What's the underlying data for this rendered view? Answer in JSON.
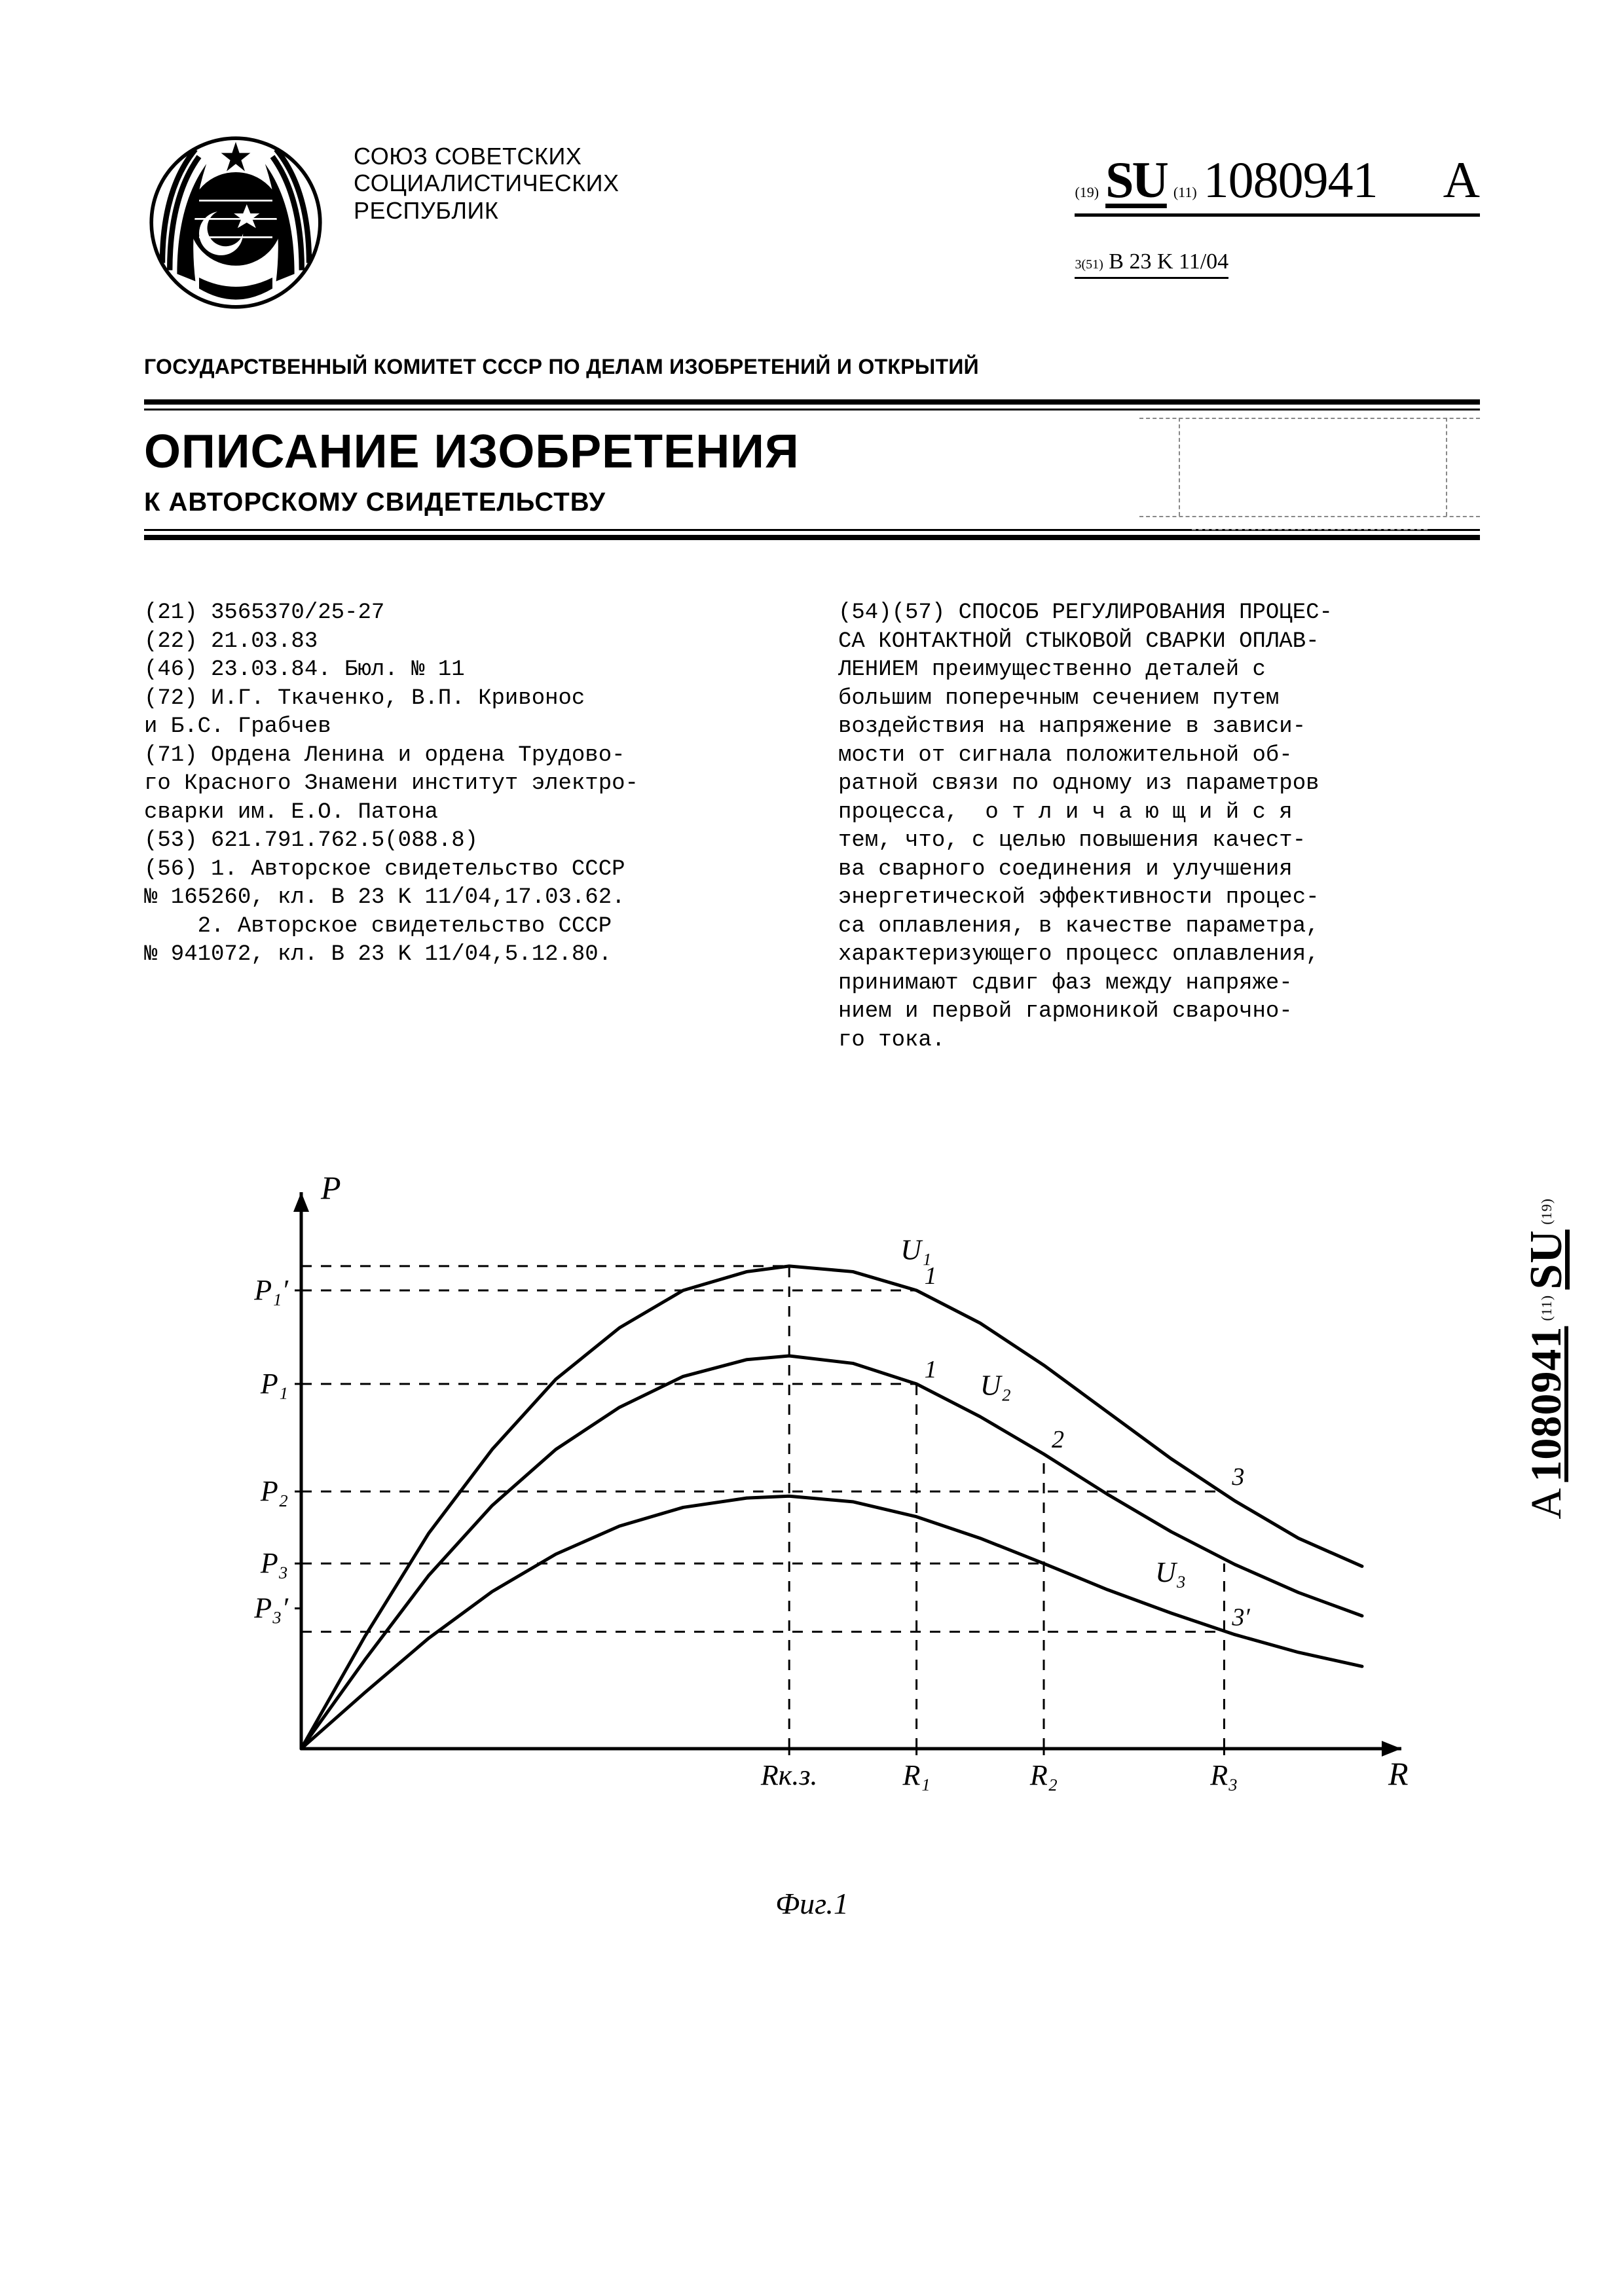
{
  "header": {
    "issuer": "СОЮЗ СОВЕТСКИХ\nСОЦИАЛИСТИЧЕСКИХ\nРЕСПУБЛИК",
    "pub_prefix_19": "(19)",
    "pub_cc": "SU",
    "pub_prefix_11": "(11)",
    "pub_number": "1080941",
    "pub_kind": "A",
    "class_prefix": "3(51)",
    "class_code": "B 23 K 11/04",
    "committee": "ГОСУДАРСТВЕННЫЙ КОМИТЕТ СССР\nПО ДЕЛАМ ИЗОБРЕТЕНИЙ И ОТКРЫТИЙ"
  },
  "banner": {
    "title": "ОПИСАНИЕ ИЗОБРЕТЕНИЯ",
    "subtitle": "К АВТОРСКОМУ СВИДЕТЕЛЬСТВУ"
  },
  "left_col": "(21) 3565370/25-27\n(22) 21.03.83\n(46) 23.03.84. Бюл. № 11\n(72) И.Г. Ткаченко, В.П. Кривонос\nи Б.С. Грабчев\n(71) Ордена Ленина и ордена Трудово-\nго Красного Знамени институт электро-\nсварки им. Е.О. Патона\n(53) 621.791.762.5(088.8)\n(56) 1. Авторское свидетельство СССР\n№ 165260, кл. B 23 K 11/04,17.03.62.\n    2. Авторское свидетельство СССР\n№ 941072, кл. B 23 K 11/04,5.12.80.",
  "right_col": "(54)(57) СПОСОБ РЕГУЛИРОВАНИЯ ПРОЦЕС-\nСА КОНТАКТНОЙ СТЫКОВОЙ СВАРКИ ОПЛАВ-\nЛЕНИЕМ преимущественно деталей с\nбольшим поперечным сечением путем\nвоздействия на напряжение в зависи-\nмости от сигнала положительной об-\nратной связи по одному из параметров\nпроцесса,  о т л и ч а ю щ и й с я\nтем, что, с целью повышения качест-\nва сварного соединения и улучшения\nэнергетической эффективности процес-\nса оплавления, в качестве параметра,\nхарактеризующего процесс оплавления,\nпринимают сдвиг фаз между напряже-\nнием и первой гармоникой сварочно-\nго тока.",
  "figure": {
    "type": "line",
    "caption": "Фиг.1",
    "x_axis_label": "R",
    "y_axis_label": "P",
    "background_color": "#ffffff",
    "axis_color": "#000000",
    "line_width": 5,
    "dash_pattern": "16 14",
    "xlim": [
      0,
      1000
    ],
    "ylim": [
      0,
      560
    ],
    "curves": [
      {
        "name": "U1",
        "label": "U₁",
        "color": "#000000",
        "points": [
          [
            0,
            0
          ],
          [
            60,
            120
          ],
          [
            120,
            230
          ],
          [
            180,
            320
          ],
          [
            240,
            395
          ],
          [
            300,
            450
          ],
          [
            360,
            490
          ],
          [
            420,
            510
          ],
          [
            460,
            516
          ],
          [
            520,
            510
          ],
          [
            580,
            490
          ],
          [
            640,
            455
          ],
          [
            700,
            410
          ],
          [
            760,
            360
          ],
          [
            820,
            310
          ],
          [
            880,
            265
          ],
          [
            940,
            225
          ],
          [
            1000,
            195
          ]
        ]
      },
      {
        "name": "U2",
        "label": "U₂",
        "color": "#000000",
        "points": [
          [
            0,
            0
          ],
          [
            60,
            95
          ],
          [
            120,
            185
          ],
          [
            180,
            260
          ],
          [
            240,
            320
          ],
          [
            300,
            365
          ],
          [
            360,
            398
          ],
          [
            420,
            416
          ],
          [
            460,
            420
          ],
          [
            520,
            412
          ],
          [
            580,
            390
          ],
          [
            640,
            355
          ],
          [
            700,
            315
          ],
          [
            760,
            272
          ],
          [
            820,
            232
          ],
          [
            880,
            197
          ],
          [
            940,
            167
          ],
          [
            1000,
            142
          ]
        ]
      },
      {
        "name": "U3",
        "label": "U₃",
        "color": "#000000",
        "points": [
          [
            0,
            0
          ],
          [
            60,
            60
          ],
          [
            120,
            118
          ],
          [
            180,
            168
          ],
          [
            240,
            208
          ],
          [
            300,
            238
          ],
          [
            360,
            258
          ],
          [
            420,
            268
          ],
          [
            460,
            270
          ],
          [
            520,
            264
          ],
          [
            580,
            248
          ],
          [
            640,
            225
          ],
          [
            700,
            198
          ],
          [
            760,
            170
          ],
          [
            820,
            145
          ],
          [
            880,
            122
          ],
          [
            940,
            103
          ],
          [
            1000,
            88
          ]
        ]
      }
    ],
    "x_ticks": [
      {
        "x": 460,
        "label": "Rк.з."
      },
      {
        "x": 580,
        "label": "R₁"
      },
      {
        "x": 700,
        "label": "R₂"
      },
      {
        "x": 870,
        "label": "R₃"
      }
    ],
    "y_ticks": [
      {
        "y": 490,
        "label": "P₁′"
      },
      {
        "y": 390,
        "label": "P₁"
      },
      {
        "y": 275,
        "label": "P₂"
      },
      {
        "y": 198,
        "label": "P₃"
      },
      {
        "y": 150,
        "label": "P₃′"
      }
    ],
    "drop_lines": [
      {
        "from_curve": "U1",
        "x": 460,
        "y": 516,
        "to_y_axis": true,
        "to_x_axis": true
      },
      {
        "from_curve": "U1",
        "x": 580,
        "y": 490,
        "to_y_axis": true,
        "to_x_axis": false,
        "marker": "1"
      },
      {
        "from_curve": "U2",
        "x": 580,
        "y": 390,
        "to_y_axis": true,
        "to_x_axis": true,
        "marker": "1"
      },
      {
        "from_curve": "U1",
        "x": 870,
        "y": 275,
        "to_y_axis": true,
        "to_x_axis": false,
        "marker": "3"
      },
      {
        "from_curve": "U2",
        "x": 700,
        "y": 315,
        "to_y_axis": false,
        "to_x_axis": true,
        "marker": "2"
      },
      {
        "from_curve": "U3",
        "x": 700,
        "y": 198,
        "to_y_axis": true,
        "to_x_axis": false
      },
      {
        "from_curve": "U2",
        "x": 870,
        "y": 198,
        "to_y_axis": false,
        "to_x_axis": true
      },
      {
        "from_curve": "U3",
        "x": 870,
        "y": 125,
        "to_y_axis": true,
        "to_x_axis": false,
        "marker": "3′"
      }
    ],
    "curve_label_positions": {
      "U1": [
        565,
        515
      ],
      "U2": [
        640,
        370
      ],
      "U3": [
        805,
        170
      ]
    }
  },
  "side_docnum": {
    "p19": "(19)",
    "cc": "SU",
    "p11": "(11)",
    "num": "1080941",
    "kind": "A"
  }
}
